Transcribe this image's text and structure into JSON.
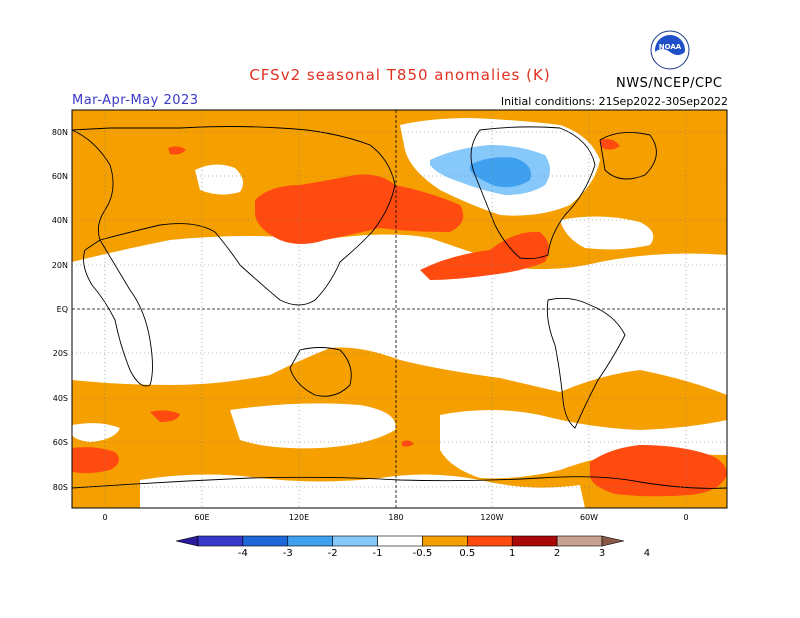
{
  "header": {
    "title": "CFSv2 seasonal T850 anomalies (K)",
    "season": "Mar-Apr-May 2023",
    "initial_conditions": "Initial conditions: 21Sep2022-30Sep2022",
    "agency": "NWS/NCEP/CPC",
    "logo_text": "NOAA"
  },
  "map": {
    "lat_labels": [
      "80N",
      "60N",
      "40N",
      "20N",
      "EQ",
      "20S",
      "40S",
      "60S",
      "80S"
    ],
    "lon_labels": [
      "0",
      "60E",
      "120E",
      "180",
      "120W",
      "60W",
      "0"
    ]
  },
  "colorbar": {
    "labels": [
      "-4",
      "-3",
      "-2",
      "-1",
      "-0.5",
      "0.5",
      "1",
      "2",
      "3",
      "4"
    ],
    "colors": [
      "#2a1a9a",
      "#3838c8",
      "#1f68d8",
      "#3fa0f0",
      "#86c8fa",
      "#ffffff",
      "#f5a000",
      "#ff4a10",
      "#a80808",
      "#c8a090",
      "#8a5848"
    ]
  },
  "colors": {
    "ocean_base": "#f5a000",
    "neutral": "#ffffff",
    "warm_strong": "#ff4a10",
    "cold_light": "#86c8fa",
    "cold_mid": "#3fa0f0",
    "title": "#e03020",
    "season": "#3a3ac8"
  }
}
